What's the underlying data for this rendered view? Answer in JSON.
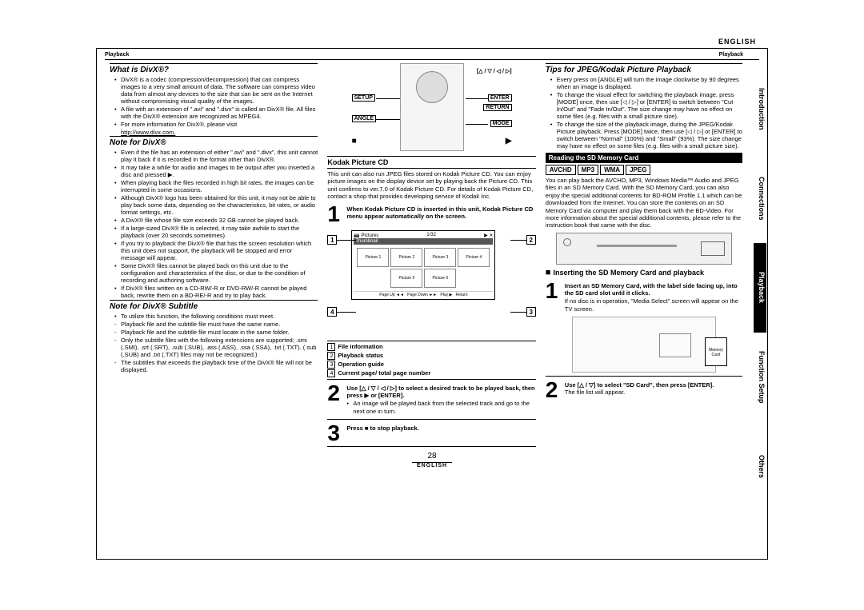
{
  "lang": "ENGLISH",
  "hdr_left": "Playback",
  "hdr_right": "Playback",
  "col1": {
    "h1": "What is DivX®?",
    "b1": [
      "DivX® is a codec (compression/decompression) that can compress images to a very small amount of data. The software can compress video data from almost any devices to the size that can be sent on the Internet without compromising visual quality of the images.",
      "A file with an extension of \".avi\" and \".divx\" is called an DivX® file. All files with the DivX® extension are recognized as MPEG4.",
      "For more information for DivX®, please visit"
    ],
    "link": "http://www.divx.com.",
    "h2": "Note for DivX®",
    "b2": [
      "Even if the file has an extension of either \".avi\" and \".divx\", this unit cannot play it back if it is recorded in the format other than DivX®.",
      "It may take a while for audio and images to be output after you inserted a disc and pressed ▶.",
      "When playing back the files recorded in high bit rates, the images can be interrupted in some occasions.",
      "Although DivX® logo has been obtained for this unit, it may not be able to play back some data, depending on the characteristics, bit rates, or audio format settings, etc.",
      "A DivX® file whose file size exceeds 32 GB cannot be played back.",
      "If a large-sized DivX® file is selected, it may take awhile to start the playback (over 20 seconds sometimes).",
      "If you try to playback the DivX® file that has the screen resolution which this unit does not support, the playback will be stopped and error message will appear.",
      "Some DivX® files cannot be played back on this unit due to the configuration and characteristics of the disc, or due to the condition of recording and authoring software.",
      "If DivX® files written on a CD-RW/-R or DVD-RW/-R cannot be played back, rewrite them on a BD-RE/-R and try to play back."
    ],
    "h3": "Note for DivX® Subtitle",
    "b3": [
      "To utilize this function, the following conditions must meet."
    ],
    "b3d": [
      "Playback file and the subtitle file must have the same name.",
      "Playback file and the subtitle file must locate in the same folder.",
      "Only the subtitle files with the following extensions are supported; .smi (.SMI), .srt (.SRT), .sub (.SUB), .ass (.ASS), .ssa (.SSA), .txt (.TXT). (.sub (.SUB) and .txt (.TXT) files may not be recognized.)",
      "The subtitles that exceeds the playback time of the DivX® file will not be displayed."
    ]
  },
  "col2": {
    "r": {
      "arrows": "[△ / ▽ / ◁ / ▷]",
      "setup": "SETUP",
      "enter": "ENTER",
      "return": "RETURN",
      "angle": "ANGLE",
      "mode": "MODE",
      "stop": "■",
      "play": "▶"
    },
    "kh": "Kodak Picture CD",
    "kp": "This unit can also run JPEG files stored on Kodak Picture CD. You can enjoy picture images on the display device set by playing back the Picture CD. This unit confirms to ver.7.0 of Kodak Picture CD. For details of Kodak Picture CD, contact a shop that provides developing service of Kodak Inc.",
    "s1": "When Kodak Picture CD is inserted in this unit, Kodak Picture CD menu appear automatically on the screen.",
    "thumb_title": "Pictures",
    "thumb_sub": "Thumbnail",
    "thumbs": [
      "Picture 1",
      "Picture 2",
      "Picture 3",
      "Picture 4",
      "Picture 5",
      "Picture 6"
    ],
    "defs": [
      "File information",
      "Playback status",
      "Operation guide",
      "Current page/ total page number"
    ],
    "s2": "Use [△ / ▽ / ◁ / ▷] to select a desired track to be played back, then press ▶ or [ENTER].",
    "s2n": "An image will be played back from the selected track and go to the next one in turn.",
    "s3": "Press ■ to stop playback."
  },
  "col3": {
    "h1": "Tips for JPEG/Kodak Picture Playback",
    "b1": [
      "Every press on [ANGLE] will turn the image clockwise by 90 degrees when an image is displayed.",
      "To change the visual effect for switching the playback image, press [MODE] once, then use [◁ / ▷] or [ENTER] to switch between \"Cut In/Out\" and \"Fade In/Out\". The size change may have no effect on some files (e.g. files with a small picture size).",
      "To change the size of the playback image, during the JPEG/Kodak Picture playback. Press [MODE] twice, then use [◁ / ▷] or [ENTER] to switch between \"Normal\" (100%) and \"Small\" (93%). The size change may have no effect on some files (e.g. files with a small picture size)."
    ],
    "bh": "Reading the SD Memory Card",
    "badges": [
      "AVCHD",
      "MP3",
      "WMA",
      "JPEG"
    ],
    "bp": "You can play back the AVCHD, MP3, Windows Media™ Audio and JPEG files in an SD Memory Card. With the SD Memory Card, you can also enjoy the special additional contents for BD-ROM Profile 1.1 which can be downloaded from the Internet. You can store the contents on an SD Memory Card via computer and play them back with the BD-Video. For more information about the special additional contents, please refer to the instruction book that came with the disc.",
    "sh": "Inserting the SD Memory Card and playback",
    "s1a": "Insert an SD Memory Card, with the label side facing up, into the SD card slot until it clicks.",
    "s1b": "If no disc is in operation, \"Media Select\" screen will appear on the TV screen.",
    "sd": "Memory Card",
    "s2a": "Use [△ / ▽] to select \"SD Card\", then press [ENTER].",
    "s2b": "The file list will appear."
  },
  "tabs": [
    "Introduction",
    "Connections",
    "Playback",
    "Function Setup",
    "Others"
  ],
  "active_tab": 2,
  "page": "28"
}
